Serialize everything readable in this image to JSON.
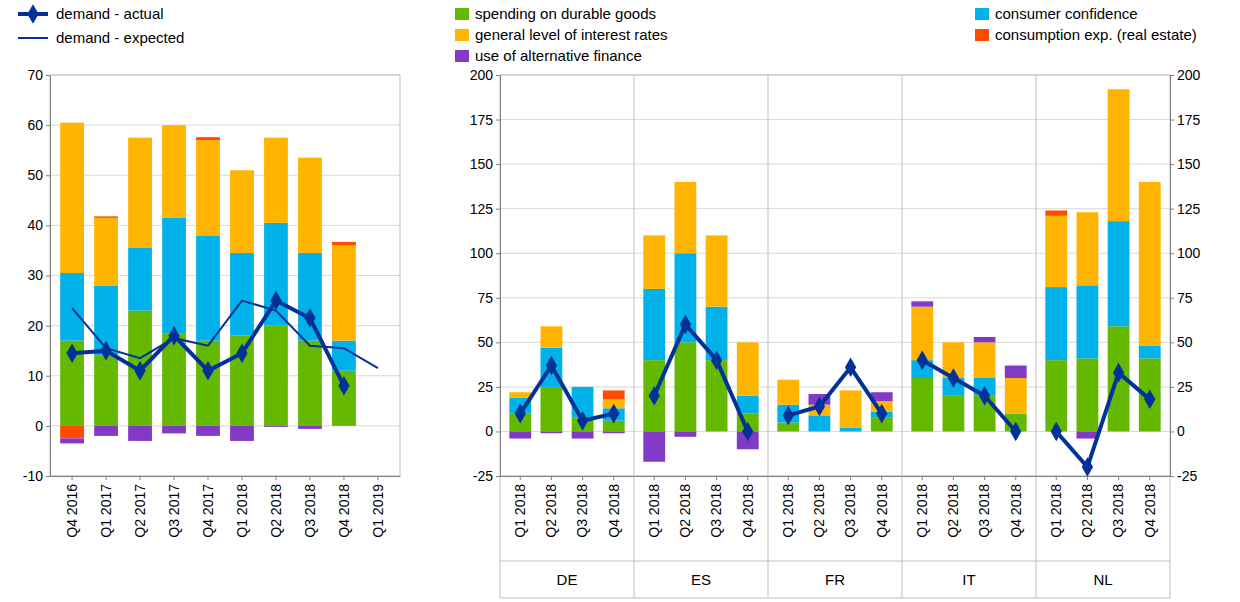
{
  "chart_data": [
    {
      "type": "bar",
      "stacked": true,
      "grid": true,
      "legend": "top-left",
      "categories": [
        "Q4 2016",
        "Q1 2017",
        "Q2 2017",
        "Q3 2017",
        "Q4 2017",
        "Q1 2018",
        "Q2 2018",
        "Q3 2018",
        "Q4 2018",
        "Q1 2019"
      ],
      "ylim": [
        -10,
        70
      ],
      "yticks": [
        -10,
        0,
        10,
        20,
        30,
        40,
        50,
        60,
        70
      ],
      "series": [
        {
          "color": "#65b800",
          "values": [
            17,
            14,
            23,
            18.5,
            17,
            18,
            20,
            17,
            11,
            null
          ]
        },
        {
          "color": "#00b1ea",
          "values": [
            13.5,
            14,
            12.5,
            23,
            21,
            16.5,
            20.5,
            17.5,
            6,
            null
          ]
        },
        {
          "color": "#ffb400",
          "values": [
            30,
            13.5,
            22,
            18.5,
            19,
            16.5,
            17,
            19,
            19,
            null
          ]
        },
        {
          "color": "#ff4b00",
          "values": [
            -2.5,
            0.3,
            0,
            0,
            0.6,
            0,
            0,
            0,
            0.7,
            null
          ]
        },
        {
          "color": "#8139c6",
          "values": [
            -1,
            -2,
            -3,
            -1.5,
            -2,
            -3,
            -0.2,
            -0.6,
            0,
            null
          ]
        },
        {
          "name": "demand - actual",
          "type": "line",
          "color": "#003299",
          "marker": "diamond",
          "line_style": "solid",
          "values": [
            14.5,
            15,
            11,
            18,
            11,
            14.5,
            25,
            21.5,
            8,
            null
          ]
        },
        {
          "name": "demand - expected",
          "type": "line",
          "color": "#003299",
          "line_style": "solid",
          "values": [
            23.5,
            15.5,
            13.5,
            17.5,
            16,
            25,
            23,
            16,
            15.5,
            11.5
          ]
        }
      ]
    },
    {
      "type": "bar",
      "stacked": true,
      "grid": true,
      "legend": "top",
      "groups": [
        "DE",
        "ES",
        "FR",
        "IT",
        "NL"
      ],
      "categories": [
        "Q1 2018",
        "Q2 2018",
        "Q3 2018",
        "Q4 2018",
        "Q1 2018",
        "Q2 2018",
        "Q3 2018",
        "Q4 2018",
        "Q1 2018",
        "Q2 2018",
        "Q3 2018",
        "Q4 2018",
        "Q1 2018",
        "Q2 2018",
        "Q3 2018",
        "Q4 2018",
        "Q1 2018",
        "Q2 2018",
        "Q3 2018",
        "Q4 2018"
      ],
      "ylim": [
        -25,
        200
      ],
      "yticks": [
        -25,
        0,
        25,
        50,
        75,
        100,
        125,
        150,
        175,
        200
      ],
      "series": [
        {
          "name": "spending on durable goods",
          "color": "#65b800",
          "values": [
            10,
            25,
            8,
            6,
            40,
            50,
            40,
            10,
            5,
            0,
            0,
            8,
            30,
            20,
            20,
            10,
            40,
            41,
            59,
            41
          ]
        },
        {
          "name": "consumer confidence",
          "color": "#00b1ea",
          "values": [
            9,
            22,
            17,
            7,
            40,
            50,
            30,
            10,
            10,
            9,
            2,
            3,
            10,
            10,
            10,
            0,
            41,
            41,
            59,
            7
          ]
        },
        {
          "name": "general level of interest rates",
          "color": "#ffb400",
          "values": [
            3,
            12,
            0,
            5,
            30,
            40,
            40,
            30,
            14,
            6,
            21,
            6,
            30,
            20,
            20,
            20,
            40,
            41,
            74,
            92
          ]
        },
        {
          "name": "consumption exp. (real estate)",
          "color": "#ff4b00",
          "values": [
            0,
            0,
            0,
            5,
            0,
            0,
            0,
            0,
            0,
            0,
            0,
            0,
            0,
            0,
            0,
            0,
            3,
            0,
            0,
            0
          ]
        },
        {
          "name": "use of alternative finance",
          "color": "#8139c6",
          "values": [
            -4,
            -1,
            -4,
            -1,
            -17,
            -3,
            0,
            -10,
            0,
            6,
            0,
            5,
            3,
            0,
            3,
            7,
            0,
            -4,
            0,
            0
          ]
        },
        {
          "type": "line",
          "color": "#003299",
          "marker": "diamond",
          "line_style": "solid",
          "values": [
            10,
            37,
            6,
            10,
            20,
            60,
            40,
            0,
            9,
            14,
            36,
            10,
            40,
            30,
            20,
            0,
            0,
            -20,
            33,
            18
          ]
        }
      ]
    }
  ]
}
